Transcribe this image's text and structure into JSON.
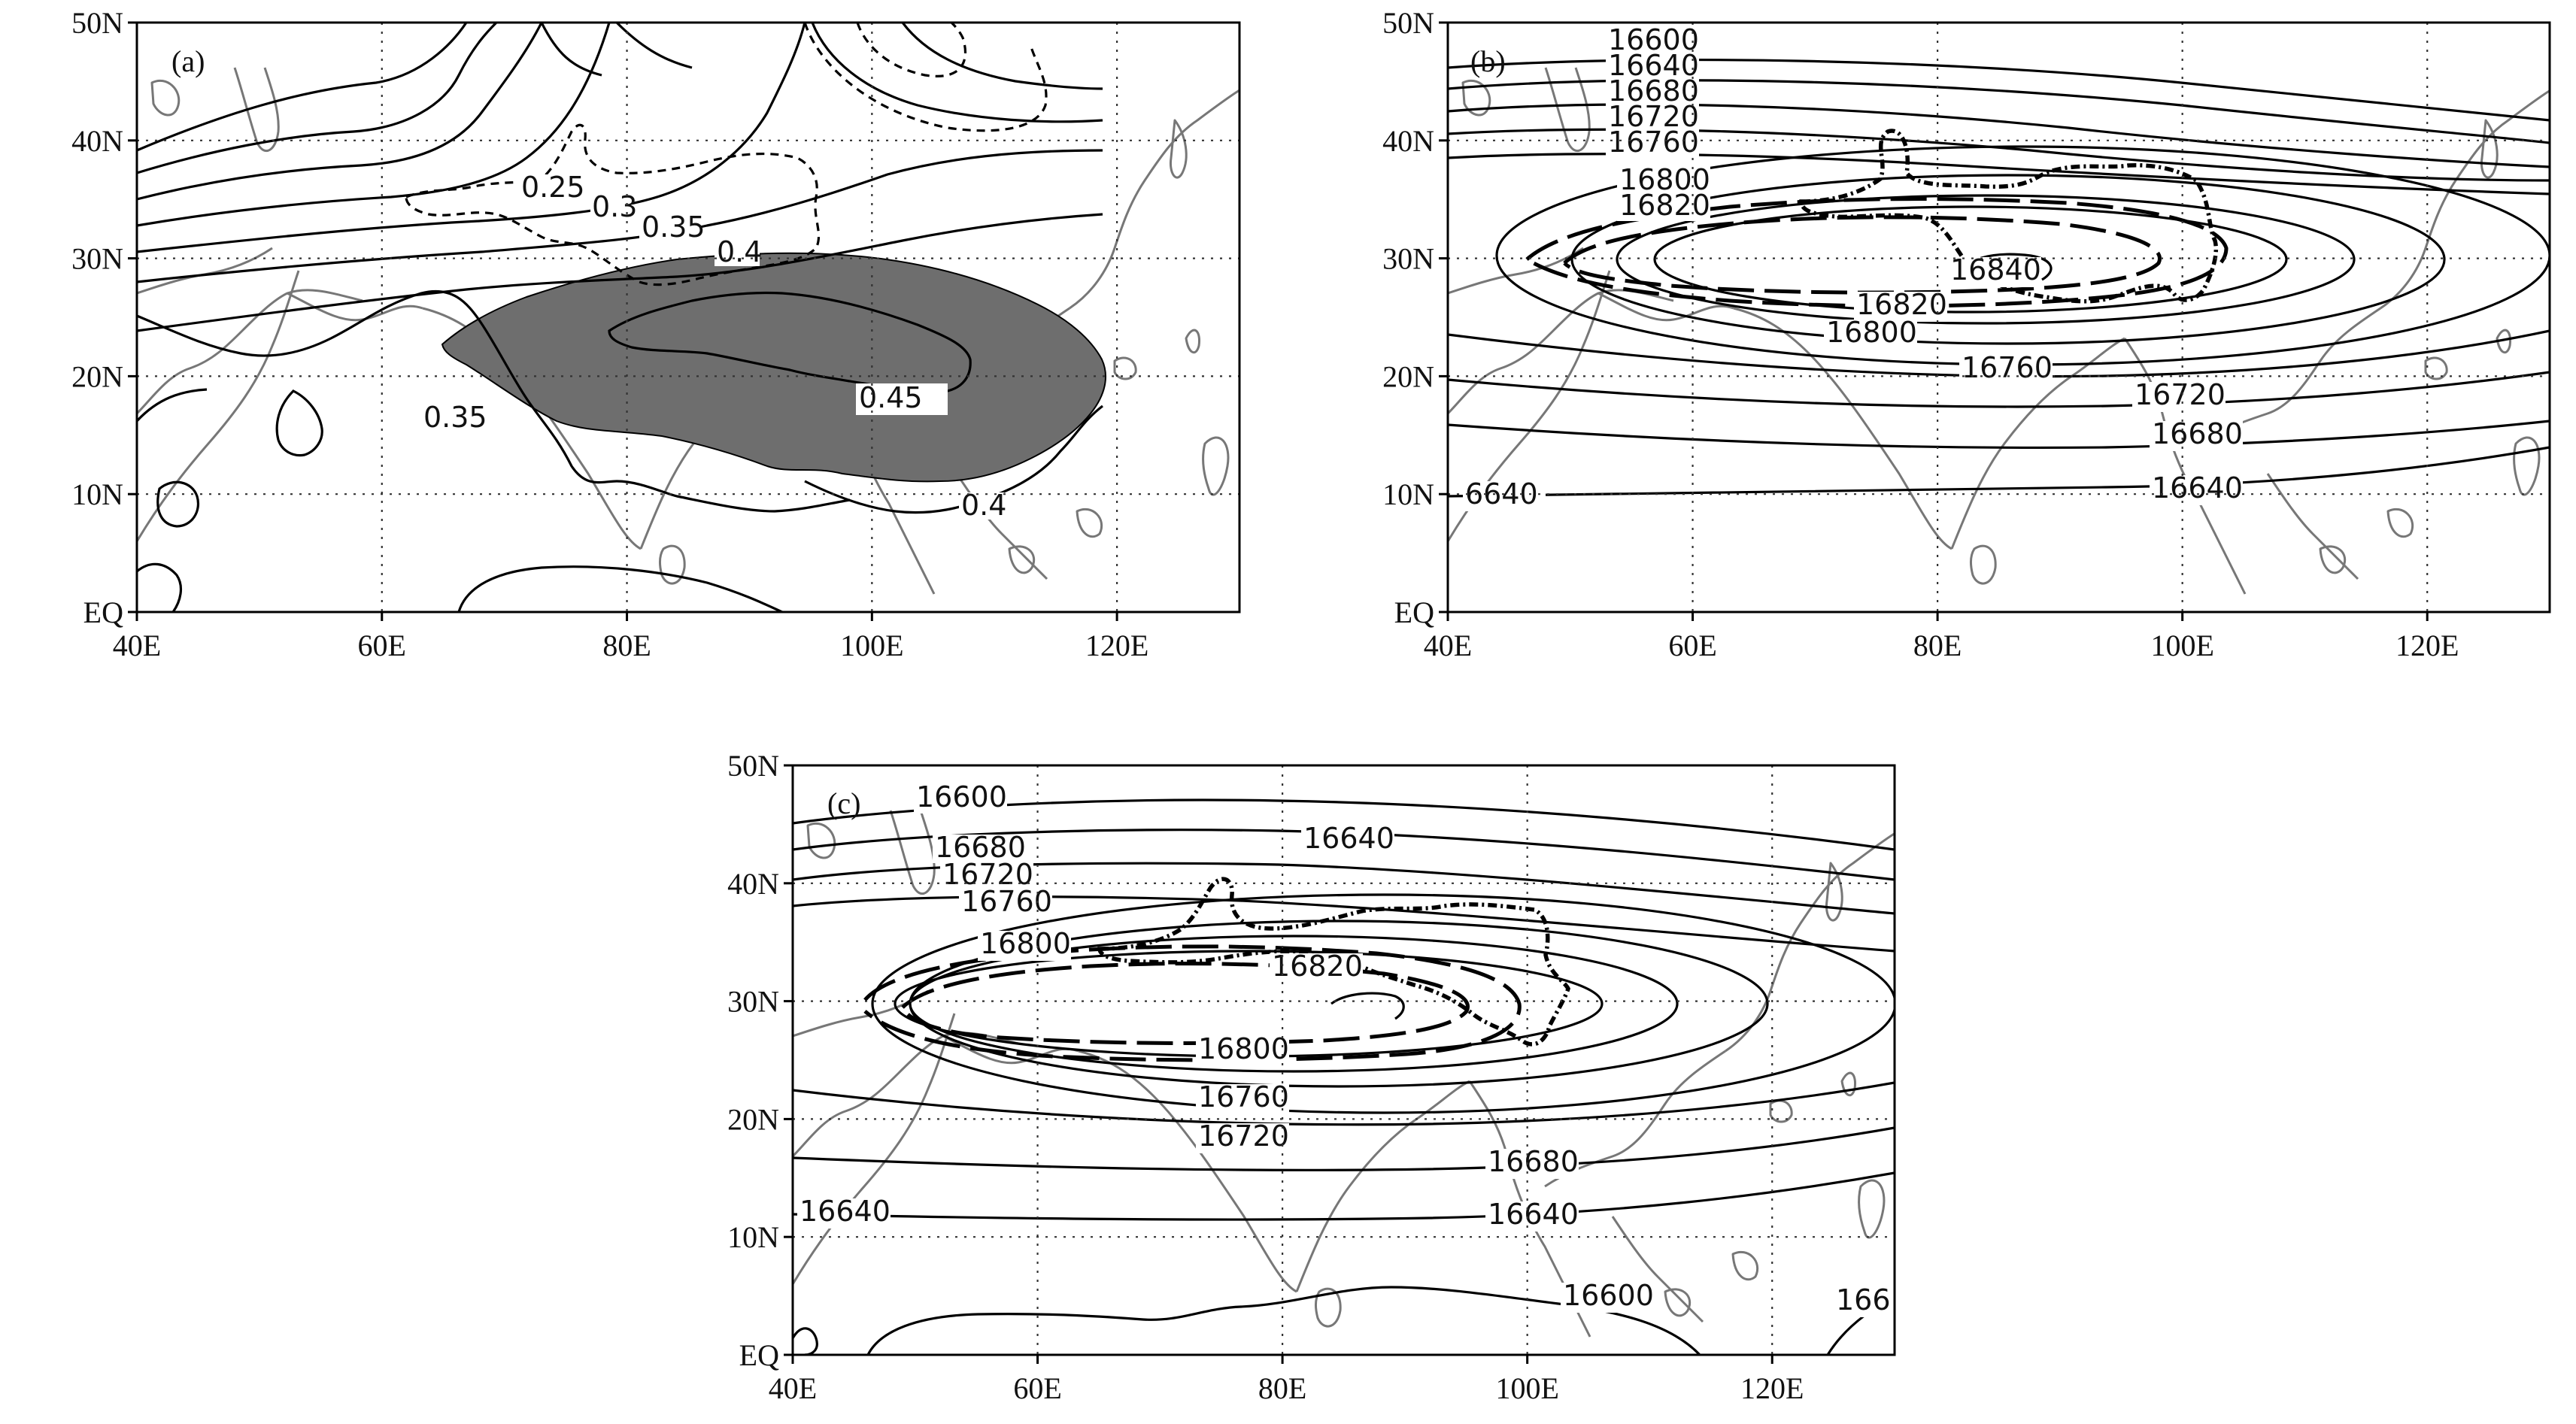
{
  "axes": {
    "lat_ticks": [
      "50N",
      "40N",
      "30N",
      "20N",
      "10N",
      "EQ"
    ],
    "lon_ticks": [
      "40E",
      "60E",
      "80E",
      "100E",
      "120E"
    ]
  },
  "panels": {
    "a": {
      "label": "(a)",
      "contour_labels": [
        "0.25",
        "0.3",
        "0.35",
        "0.4",
        "0.45",
        "0.35",
        "0.4"
      ]
    },
    "b": {
      "label": "(b)",
      "contour_labels": [
        "16600",
        "16640",
        "16680",
        "16720",
        "16760",
        "16800",
        "16820",
        "16840",
        "16820",
        "16800",
        "16760",
        "16720",
        "16680",
        "16640",
        "6640"
      ]
    },
    "c": {
      "label": "(c)",
      "contour_labels": [
        "16600",
        "16640",
        "16680",
        "16720",
        "16760",
        "16800",
        "16820",
        "16800",
        "16760",
        "16720",
        "16680",
        "16640",
        "16640",
        "16600",
        "166"
      ]
    }
  },
  "colors": {
    "shading": "#6e6e6e",
    "coastline": "#777777",
    "contour": "#000000"
  }
}
